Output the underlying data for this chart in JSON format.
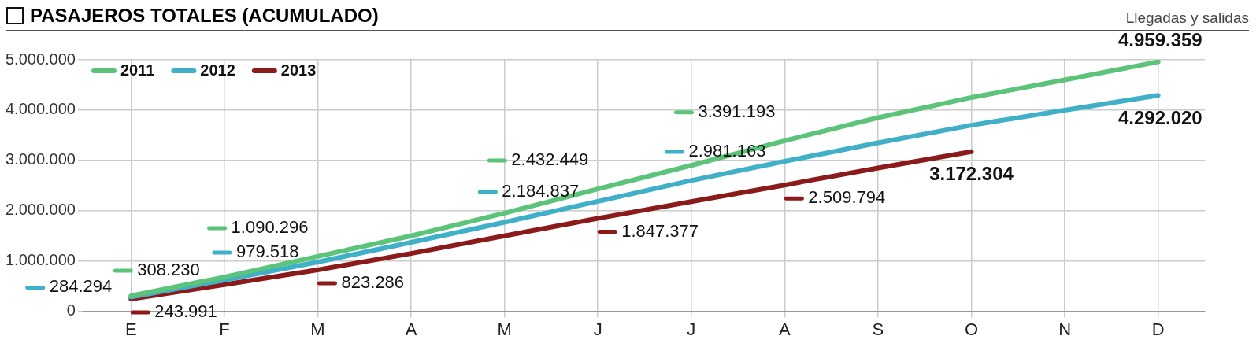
{
  "chart_data": {
    "type": "line",
    "title": "PASAJEROS TOTALES (ACUMULADO)",
    "subtitle": "Llegadas y salidas",
    "categories": [
      "E",
      "F",
      "M",
      "A",
      "M",
      "J",
      "J",
      "A",
      "S",
      "O",
      "N",
      "D"
    ],
    "series": [
      {
        "name": "2011",
        "color": "#5cc47a",
        "values": [
          308230,
          680000,
          1090296,
          1500000,
          1950000,
          2432449,
          2900000,
          3391193,
          3850000,
          4250000,
          4600000,
          4959359
        ],
        "value_labels": [
          "308.230",
          null,
          "1.090.296",
          null,
          null,
          "2.432.449",
          null,
          "3.391.193",
          null,
          null,
          null,
          "4.959.359"
        ]
      },
      {
        "name": "2012",
        "color": "#3fb0c8",
        "values": [
          284294,
          620000,
          979518,
          1370000,
          1770000,
          2184837,
          2600000,
          2981163,
          3350000,
          3700000,
          4000000,
          4292020
        ],
        "value_labels": [
          "284.294",
          null,
          "979.518",
          null,
          null,
          "2.184.837",
          null,
          "2.981.163",
          null,
          null,
          null,
          "4.292.020"
        ]
      },
      {
        "name": "2013",
        "color": "#8b1a1a",
        "values": [
          243991,
          530000,
          823286,
          1150000,
          1500000,
          1847377,
          2180000,
          2509794,
          2850000,
          3172304,
          null,
          null
        ],
        "value_labels": [
          "243.991",
          null,
          "823.286",
          null,
          null,
          "1.847.377",
          null,
          "2.509.794",
          null,
          "3.172.304",
          null,
          null
        ]
      }
    ],
    "ylim": [
      0,
      5000000
    ],
    "yticks": [
      0,
      {
        "value": 1000000,
        "label": "1.000.000"
      },
      {
        "value": 2000000,
        "label": "2.000.000"
      },
      {
        "value": 3000000,
        "label": "3.000.000"
      },
      {
        "value": 4000000,
        "label": "4.000.000"
      },
      {
        "value": 5000000,
        "label": "5.000.000"
      }
    ],
    "grid": true,
    "legend": "top left"
  }
}
